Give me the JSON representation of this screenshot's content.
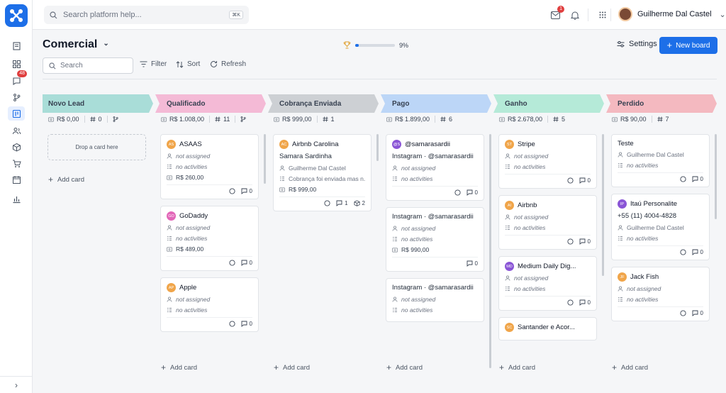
{
  "search": {
    "placeholder": "Search platform help...",
    "shortcut": "⌘K"
  },
  "notifications": {
    "mail_count": "1"
  },
  "rail": {
    "chat_count": "48"
  },
  "user": {
    "name": "Guilherme Dal Castel"
  },
  "board": {
    "title": "Comercial",
    "progress_label": "9%",
    "progress_value": 0.09,
    "settings_label": "Settings",
    "new_board_label": "New board"
  },
  "toolbar": {
    "search_placeholder": "Search",
    "filter_label": "Filter",
    "sort_label": "Sort",
    "refresh_label": "Refresh"
  },
  "columns": [
    {
      "name": "Novo Lead",
      "color": "#a9ddd8",
      "amount": "R$ 0,00",
      "count": "0",
      "drop_label": "Drop a card here",
      "add_label": "Add card",
      "cards": []
    },
    {
      "name": "Qualificado",
      "color": "#f4bad6",
      "amount": "R$ 1.008,00",
      "count": "11",
      "add_label": "Add card",
      "cards": [
        {
          "initials": "AS",
          "av_color": "#f0a54a",
          "title": "ASAAS",
          "assignee": "not assigned",
          "activities": "no activities",
          "value": "R$ 260,00",
          "comments": "0"
        },
        {
          "initials": "GO",
          "av_color": "#e266b8",
          "title": "GoDaddy",
          "assignee": "not assigned",
          "activities": "no activities",
          "value": "R$ 489,00",
          "comments": "0"
        },
        {
          "initials": "AP",
          "av_color": "#f0a54a",
          "title": "Apple",
          "assignee": "not assigned",
          "activities": "no activities",
          "comments": "0"
        }
      ]
    },
    {
      "name": "Cobrança Enviada",
      "color": "#cdd0d4",
      "amount": "R$ 999,00",
      "count": "1",
      "add_label": "Add card",
      "cards": [
        {
          "initials": "AC",
          "av_color": "#f0a54a",
          "title": "Airbnb Carolina",
          "body": "Samara Sardinha",
          "owner": "Guilherme Dal Castel",
          "activities": "Cobrança foi enviada mas n...",
          "value": "R$ 999,00",
          "comments": "1",
          "boxes": "2"
        }
      ]
    },
    {
      "name": "Pago",
      "color": "#bcd6f7",
      "amount": "R$ 1.899,00",
      "count": "6",
      "add_label": "Add card",
      "cards": [
        {
          "initials": "@S",
          "av_color": "#8a55d6",
          "title": "@samarasardii",
          "body": "Instagram · @samarasardii",
          "assignee": "not assigned",
          "activities": "no activities",
          "comments": "0"
        },
        {
          "body": "Instagram · @samarasardii",
          "assignee": "not assigned",
          "activities": "no activities",
          "value": "R$ 990,00",
          "comments": "0"
        },
        {
          "body": "Instagram · @samarasardii",
          "assignee": "not assigned",
          "activities": "no activities"
        }
      ]
    },
    {
      "name": "Ganho",
      "color": "#b5ead8",
      "amount": "R$ 2.678,00",
      "count": "5",
      "add_label": "Add card",
      "cards": [
        {
          "initials": "ST",
          "av_color": "#f0a54a",
          "title": "Stripe",
          "assignee": "not assigned",
          "activities": "no activities",
          "comments": "0"
        },
        {
          "initials": "AI",
          "av_color": "#f0a54a",
          "title": "Airbnb",
          "assignee": "not assigned",
          "activities": "no activities",
          "comments": "0"
        },
        {
          "initials": "MD",
          "av_color": "#8a55d6",
          "title": "Medium Daily Dig...",
          "assignee": "not assigned",
          "activities": "no activities",
          "comments": "0"
        },
        {
          "initials": "SC",
          "av_color": "#f0a54a",
          "title": "Santander e Acor..."
        }
      ]
    },
    {
      "name": "Perdido",
      "color": "#f4b9c0",
      "amount": "R$ 90,00",
      "count": "7",
      "add_label": "Add card",
      "cards": [
        {
          "title": "Teste",
          "owner": "Guilherme Dal Castel",
          "activities": "no activities",
          "comments": "0"
        },
        {
          "initials": "IP",
          "av_color": "#8a55d6",
          "title": "Itaú Personalite",
          "body": "+55 (11) 4004-4828",
          "owner": "Guilherme Dal Castel",
          "activities": "no activities",
          "comments": "0"
        },
        {
          "initials": "JF",
          "av_color": "#f0a54a",
          "title": "Jack Fish",
          "assignee": "not assigned",
          "activities": "no activities",
          "comments": "0"
        }
      ]
    }
  ]
}
